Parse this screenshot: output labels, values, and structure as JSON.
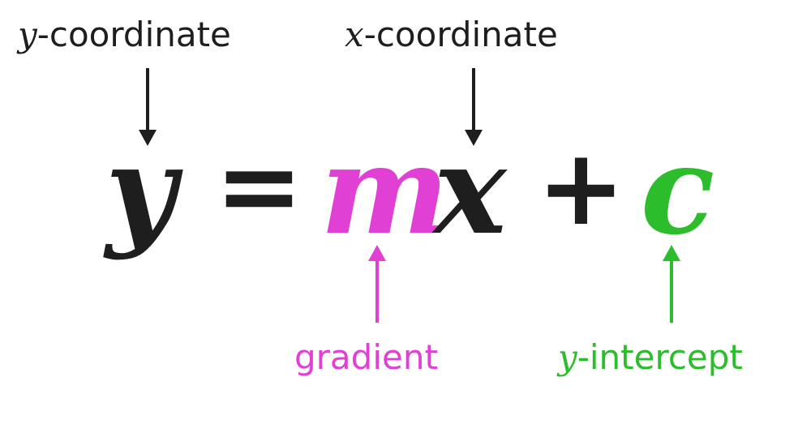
{
  "colors": {
    "ink": "#1e1e1e",
    "gradient": "#e040d4",
    "intercept": "#2bbd2b"
  },
  "labels": {
    "y_coordinate": {
      "var": "y",
      "text": "-coordinate"
    },
    "x_coordinate": {
      "var": "x",
      "text": "-coordinate"
    },
    "gradient": "gradient",
    "y_intercept": {
      "var": "y",
      "text": "-intercept"
    }
  },
  "equation": {
    "y": "y",
    "equals": "=",
    "m": "m",
    "x": "x",
    "plus": "+",
    "c": "c"
  }
}
